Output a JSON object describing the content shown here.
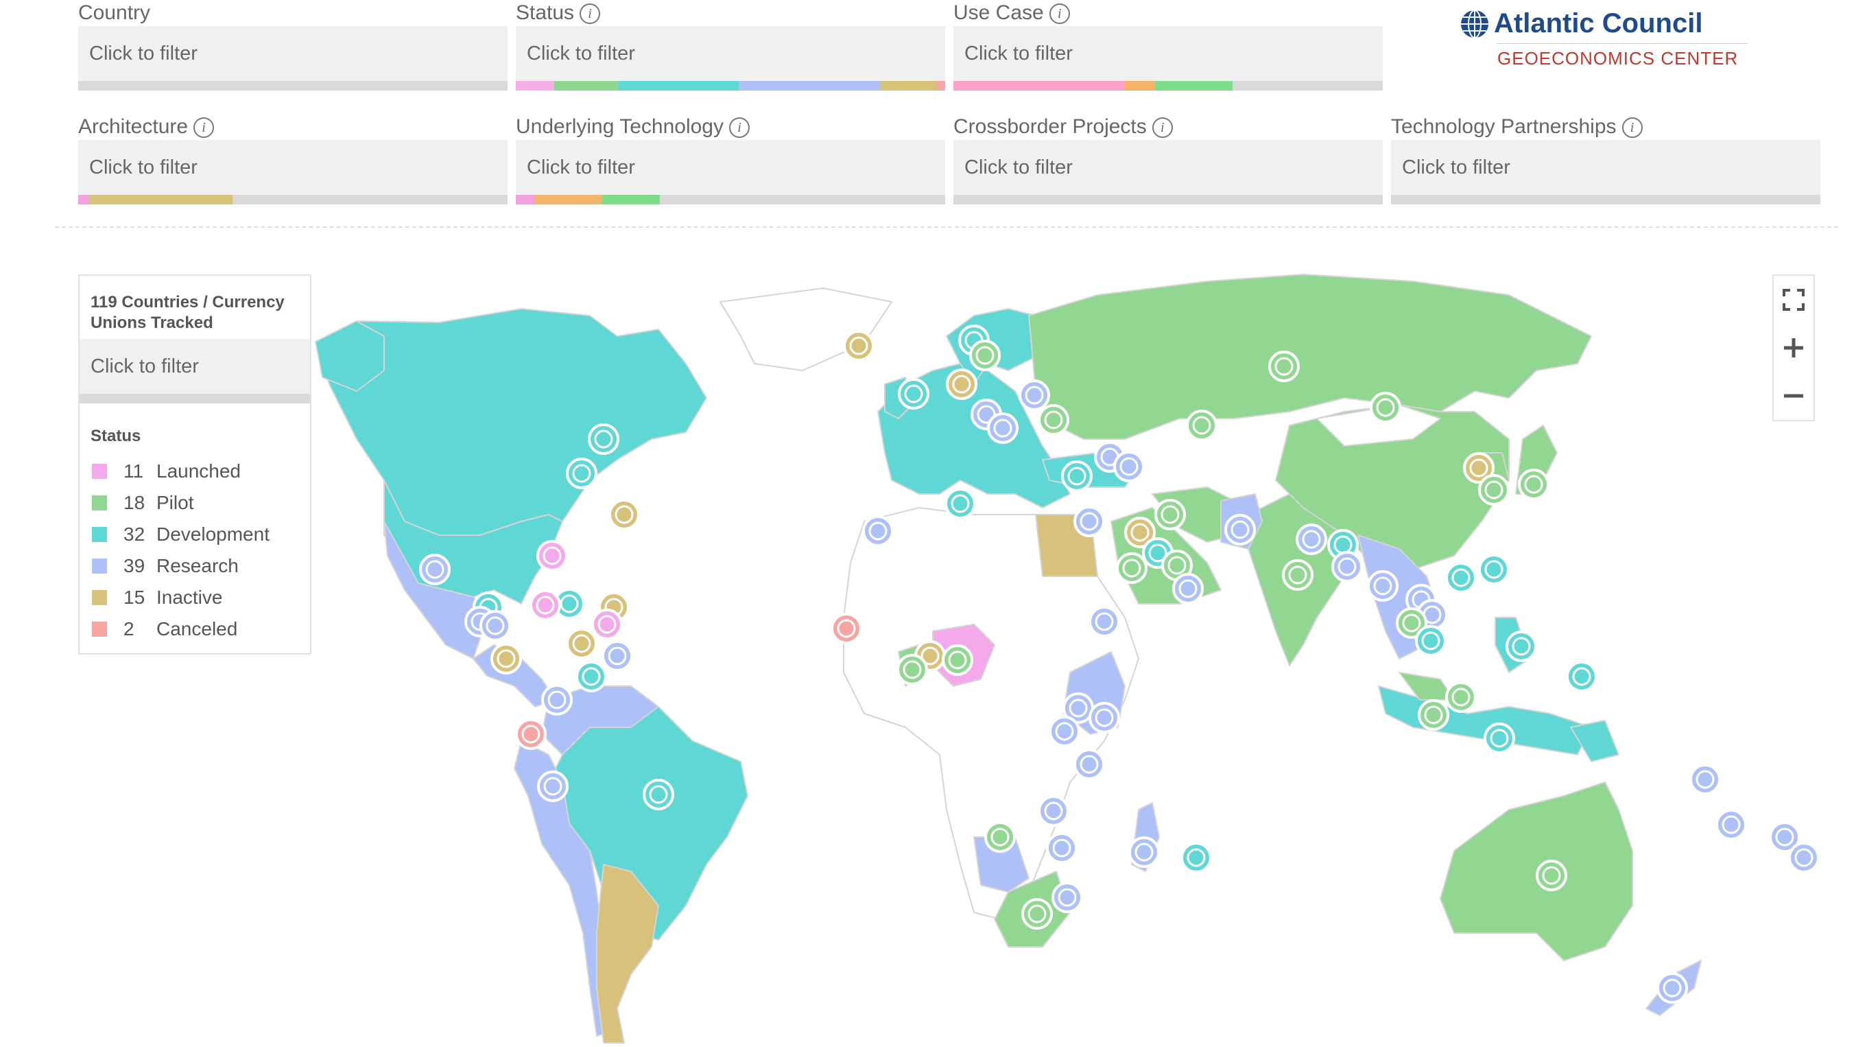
{
  "filters": [
    {
      "label": "Country",
      "info": false,
      "placeholder": "Click to filter",
      "bar": []
    },
    {
      "label": "Status",
      "info": true,
      "placeholder": "Click to filter",
      "bar": [
        [
          "#f5aee6",
          0.09
        ],
        [
          "#90d690",
          0.15
        ],
        [
          "#5fd7d4",
          0.28
        ],
        [
          "#aebff7",
          0.33
        ],
        [
          "#d7c27a",
          0.13
        ],
        [
          "#f6a6a3",
          0.02
        ]
      ]
    },
    {
      "label": "Use Case",
      "info": true,
      "placeholder": "Click to filter",
      "bar": [
        [
          "#fba0c8",
          0.4
        ],
        [
          "#f4b56a",
          0.07
        ],
        [
          "#7fdc8a",
          0.18
        ]
      ]
    },
    {
      "label": "Architecture",
      "info": true,
      "placeholder": "Click to filter",
      "bar": [
        [
          "#f3a0e0",
          0.025
        ],
        [
          "#d7c27a",
          0.335
        ]
      ]
    },
    {
      "label": "Underlying Technology",
      "info": true,
      "placeholder": "Click to filter",
      "bar": [
        [
          "#f3a0e0",
          0.045
        ],
        [
          "#f4b56a",
          0.155
        ],
        [
          "#7fdc8a",
          0.135
        ]
      ]
    },
    {
      "label": "Crossborder Projects",
      "info": true,
      "placeholder": "Click to filter",
      "bar": []
    },
    {
      "label": "Technology Partnerships",
      "info": true,
      "placeholder": "Click to filter",
      "bar": []
    }
  ],
  "logo": {
    "name": "Atlantic Council",
    "subtitle": "GEOECONOMICS CENTER"
  },
  "legend": {
    "title": "119 Countries / Currency Unions Tracked",
    "filter_placeholder": "Click to filter",
    "status_heading": "Status",
    "items": [
      {
        "count": "11",
        "label": "Launched",
        "color": "#f3a9ea"
      },
      {
        "count": "18",
        "label": "Pilot",
        "color": "#91d691"
      },
      {
        "count": "32",
        "label": "Development",
        "color": "#5fd7d4"
      },
      {
        "count": "39",
        "label": "Research",
        "color": "#aec0f8"
      },
      {
        "count": "15",
        "label": "Inactive",
        "color": "#d8c27b"
      },
      {
        "count": "2",
        "label": "Canceled",
        "color": "#f6a5a3"
      }
    ]
  },
  "zoom_controls": {
    "fullscreen_icon": "fullscreen-icon",
    "zoom_in_icon": "plus-icon",
    "zoom_out_icon": "minus-icon"
  },
  "colors": {
    "land": "#ffffff",
    "border": "#d0d0d0",
    "marker_stroke": "#ffffff"
  }
}
